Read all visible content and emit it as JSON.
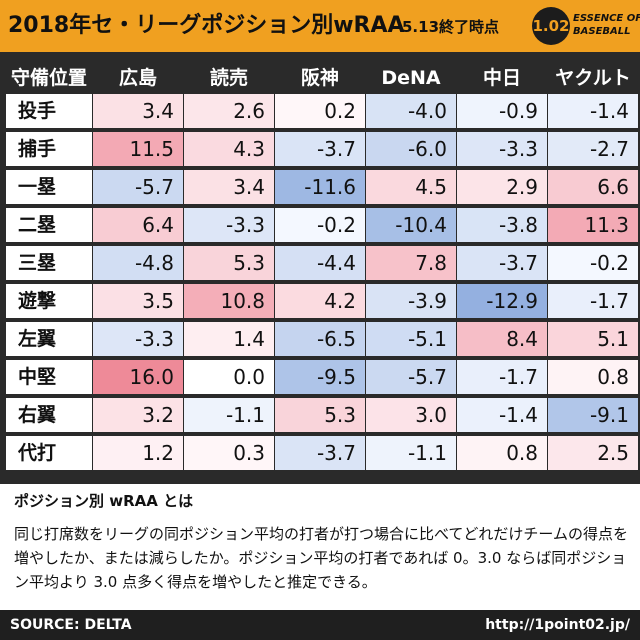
{
  "header": {
    "title": "2018年セ・リーグポジション別wRAA",
    "subtitle": "5.13終了時点",
    "logo_number": "1.02",
    "logo_line1": "ESSENCE OF",
    "logo_line2": "BASEBALL"
  },
  "colors": {
    "header_bg": "#f0a020",
    "table_bg": "#2a2a2a",
    "positive_max": "#ee8a98",
    "negative_max": "#7d9fd8",
    "footer_bg": "#1f1f1f"
  },
  "chart_data": {
    "type": "table",
    "title": "2018年セ・リーグポジション別wRAA",
    "subtitle": "5.13終了時点",
    "corner_label": "守備位置",
    "teams": [
      "広島",
      "読売",
      "阪神",
      "DeNA",
      "中日",
      "ヤクルト"
    ],
    "positions": [
      "投手",
      "捕手",
      "一塁",
      "二塁",
      "三塁",
      "遊撃",
      "左翼",
      "中堅",
      "右翼",
      "代打"
    ],
    "values": [
      [
        3.4,
        2.6,
        0.2,
        -4.0,
        -0.9,
        -1.4
      ],
      [
        11.5,
        4.3,
        -3.7,
        -6.0,
        -3.3,
        -2.7
      ],
      [
        -5.7,
        3.4,
        -11.6,
        4.5,
        2.9,
        6.6
      ],
      [
        6.4,
        -3.3,
        -0.2,
        -10.4,
        -3.8,
        11.3
      ],
      [
        -4.8,
        5.3,
        -4.4,
        7.8,
        -3.7,
        -0.2
      ],
      [
        3.5,
        10.8,
        4.2,
        -3.9,
        -12.9,
        -1.7
      ],
      [
        -3.3,
        1.4,
        -6.5,
        -5.1,
        8.4,
        5.1
      ],
      [
        16.0,
        0.0,
        -9.5,
        -5.7,
        -1.7,
        0.8
      ],
      [
        3.2,
        -1.1,
        5.3,
        3.0,
        -1.4,
        -9.1
      ],
      [
        1.2,
        0.3,
        -3.7,
        -1.1,
        0.8,
        2.5
      ]
    ]
  },
  "description": {
    "title": "ポジション別 wRAA とは",
    "body": "同じ打席数をリーグの同ポジション平均の打者が打つ場合に比べてどれだけチームの得点を増やしたか、または減らしたか。ポジション平均の打者であれば 0。3.0 ならば同ポジション平均より 3.0 点多く得点を増やしたと推定できる。"
  },
  "footer": {
    "source": "SOURCE: DELTA",
    "url": "http://1point02.jp/"
  }
}
